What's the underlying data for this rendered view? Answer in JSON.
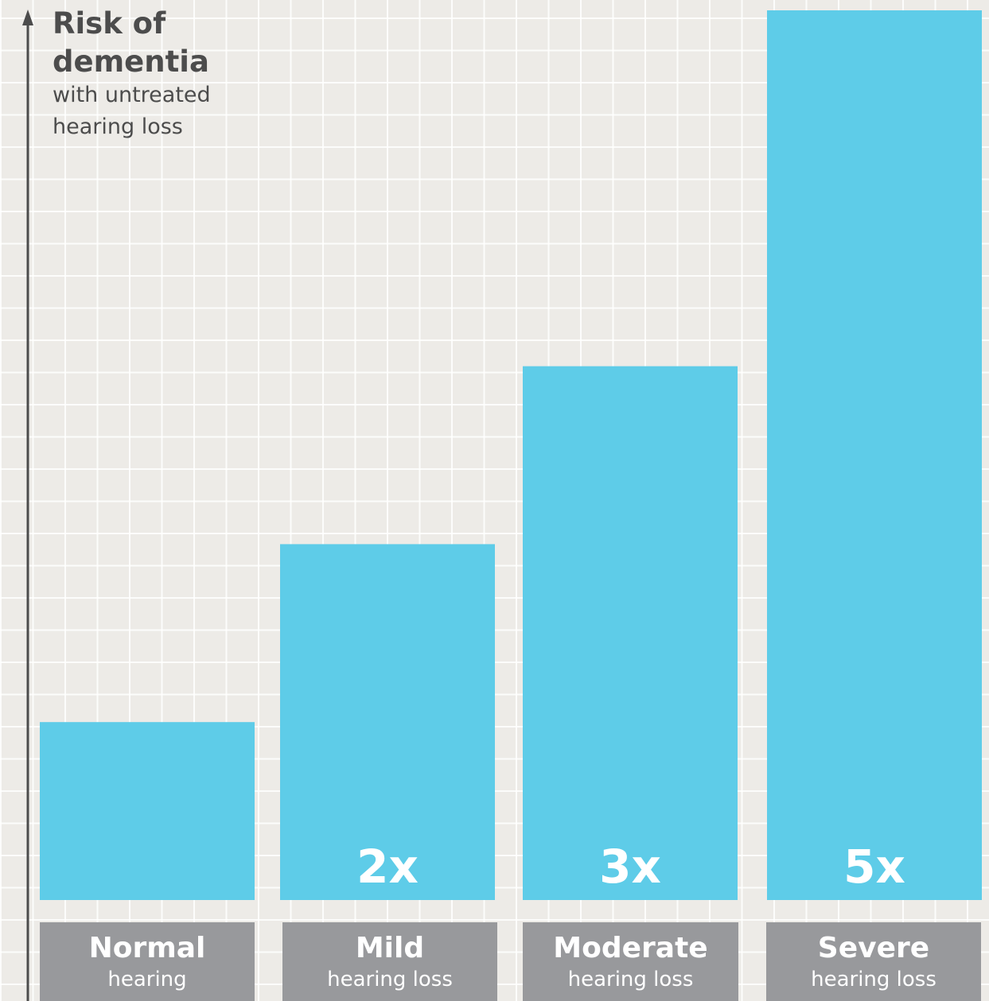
{
  "chart_data": {
    "type": "bar",
    "title": "",
    "ylabel": {
      "main": "Risk of dementia",
      "sub": "with untreated hearing loss"
    },
    "categories": [
      {
        "main": "Normal",
        "sub": "hearing"
      },
      {
        "main": "Mild",
        "sub": "hearing loss"
      },
      {
        "main": "Moderate",
        "sub": "hearing loss"
      },
      {
        "main": "Severe",
        "sub": "hearing loss"
      }
    ],
    "values": [
      1,
      2,
      3,
      5
    ],
    "data_labels": [
      "",
      "2x",
      "3x",
      "5x"
    ],
    "ylim": [
      0,
      5
    ],
    "grid": true,
    "colors": {
      "bar": "#5ecce8",
      "category_box": "#98999c",
      "axis": "#4c4c4c",
      "background": "#edebe7",
      "grid": "#ffffff"
    }
  }
}
